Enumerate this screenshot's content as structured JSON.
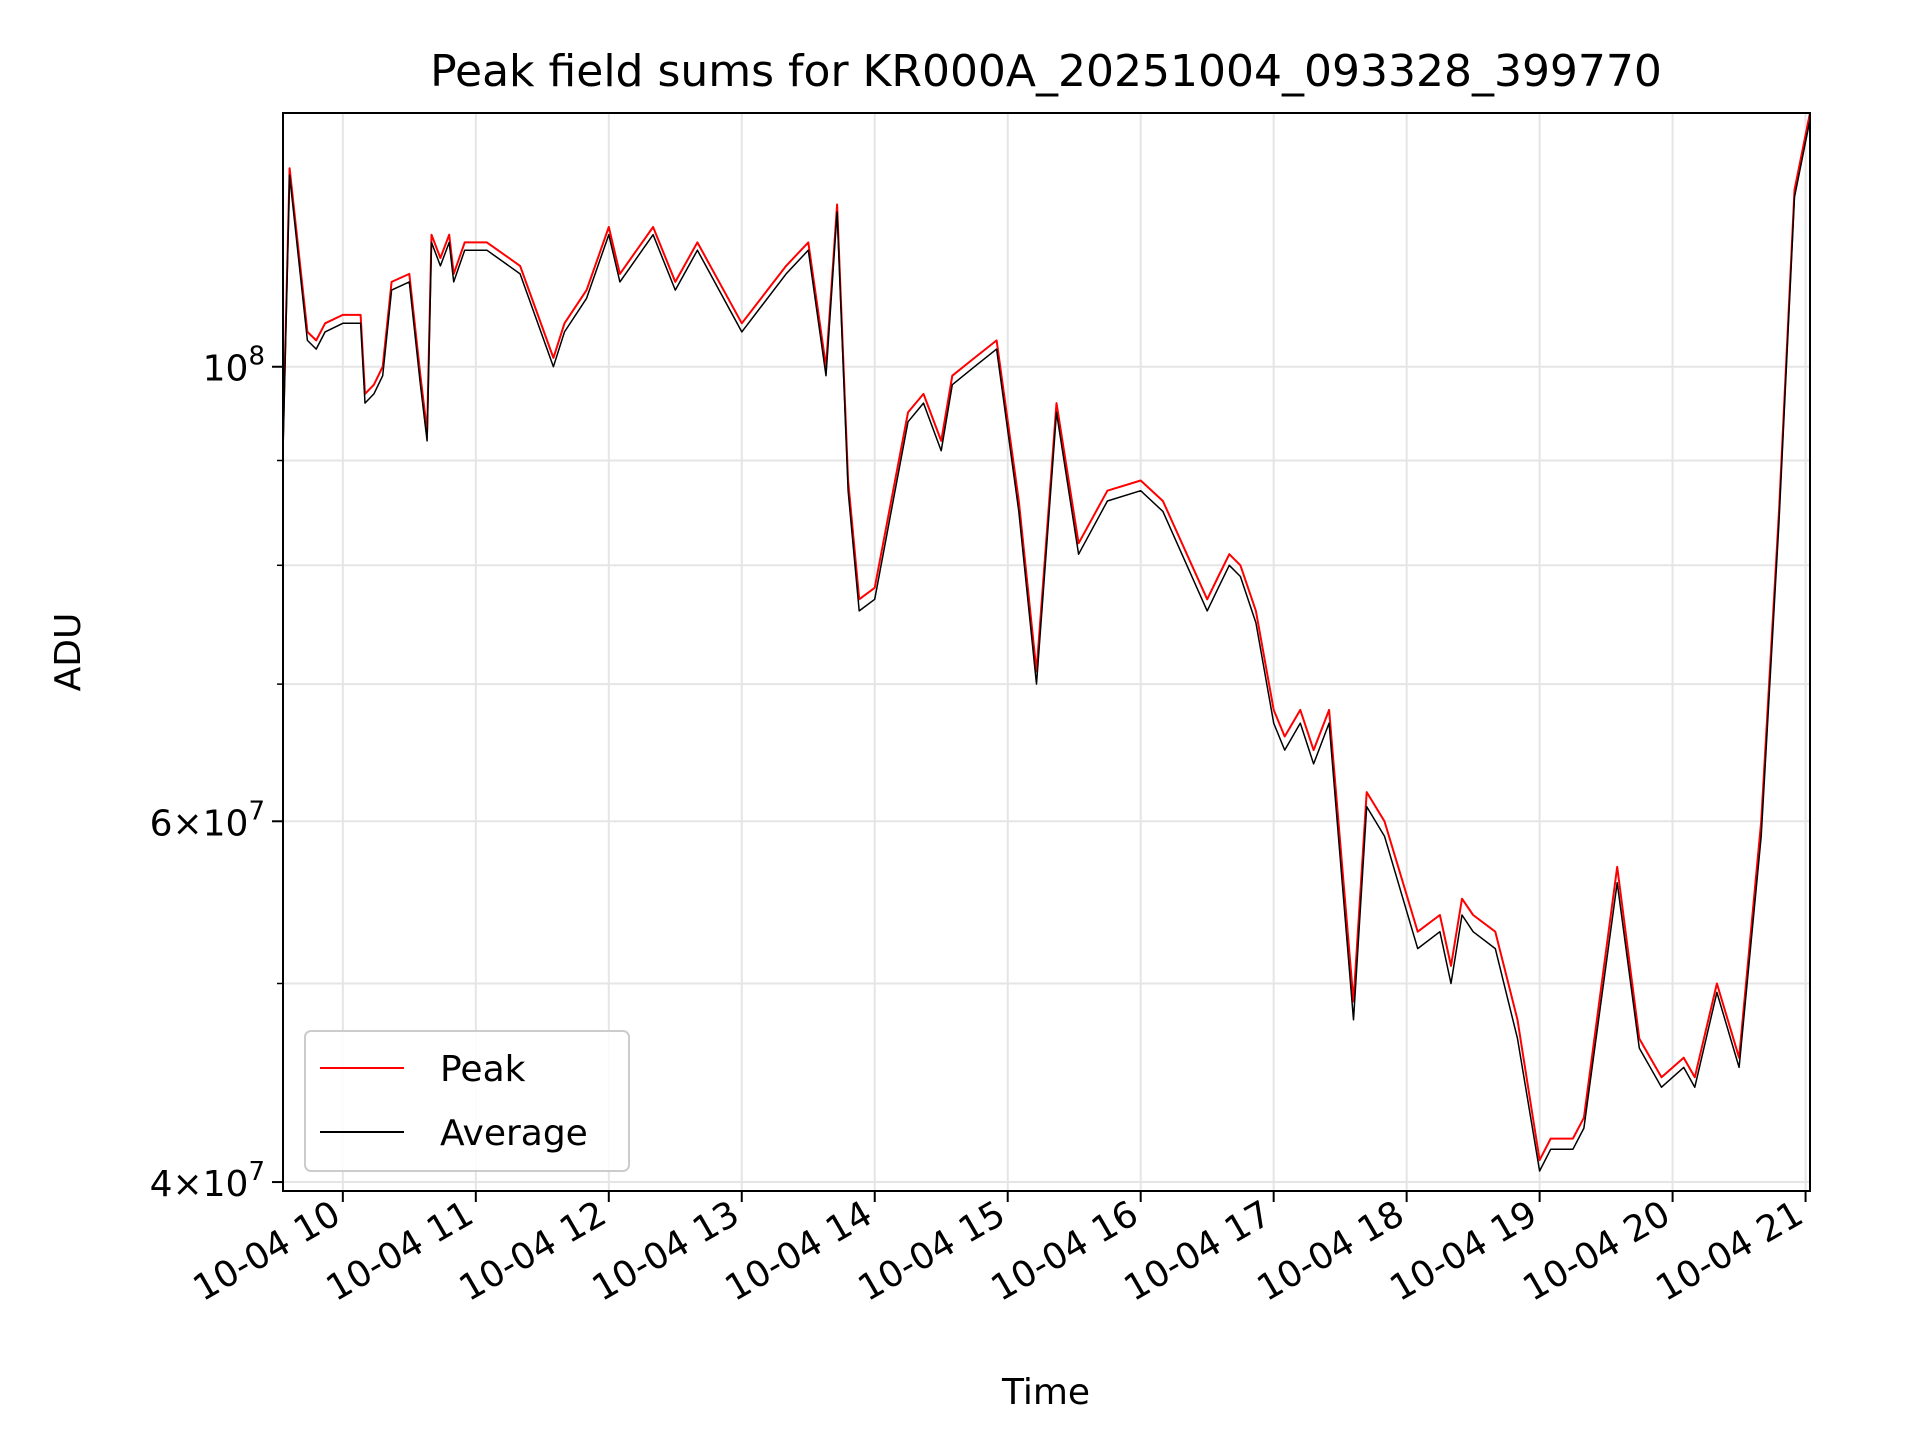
{
  "chart_data": {
    "type": "line",
    "title": "Peak field sums for KR000A_20251004_093328_399770",
    "xlabel": "Time",
    "ylabel": "ADU",
    "yscale": "log",
    "ylim": [
      39600000,
      133000000
    ],
    "xlim": [
      "2025-10-04 09:33",
      "2025-10-04 21:02"
    ],
    "xticks": [
      {
        "at": "2025-10-04 10:00",
        "label": "10-04 10"
      },
      {
        "at": "2025-10-04 11:00",
        "label": "10-04 11"
      },
      {
        "at": "2025-10-04 12:00",
        "label": "10-04 12"
      },
      {
        "at": "2025-10-04 13:00",
        "label": "10-04 13"
      },
      {
        "at": "2025-10-04 14:00",
        "label": "10-04 14"
      },
      {
        "at": "2025-10-04 15:00",
        "label": "10-04 15"
      },
      {
        "at": "2025-10-04 16:00",
        "label": "10-04 16"
      },
      {
        "at": "2025-10-04 17:00",
        "label": "10-04 17"
      },
      {
        "at": "2025-10-04 18:00",
        "label": "10-04 18"
      },
      {
        "at": "2025-10-04 19:00",
        "label": "10-04 19"
      },
      {
        "at": "2025-10-04 20:00",
        "label": "10-04 20"
      },
      {
        "at": "2025-10-04 21:00",
        "label": "10-04 21"
      }
    ],
    "yticks_major": [
      {
        "value": 40000000,
        "base": "4×10",
        "exp": "7"
      },
      {
        "value": 60000000,
        "base": "6×10",
        "exp": "7"
      },
      {
        "value": 100000000,
        "base": "10",
        "exp": "8"
      }
    ],
    "yticks_minor": [
      50000000,
      70000000,
      80000000,
      90000000
    ],
    "grid": true,
    "legend": "lower-left",
    "series": [
      {
        "name": "Peak",
        "color": "#ff0000",
        "x": [
          "2025-10-04 09:33",
          "2025-10-04 09:36",
          "2025-10-04 09:40",
          "2025-10-04 09:44",
          "2025-10-04 09:48",
          "2025-10-04 09:52",
          "2025-10-04 10:00",
          "2025-10-04 10:08",
          "2025-10-04 10:10",
          "2025-10-04 10:14",
          "2025-10-04 10:18",
          "2025-10-04 10:22",
          "2025-10-04 10:30",
          "2025-10-04 10:35",
          "2025-10-04 10:38",
          "2025-10-04 10:40",
          "2025-10-04 10:44",
          "2025-10-04 10:48",
          "2025-10-04 10:50",
          "2025-10-04 10:55",
          "2025-10-04 11:05",
          "2025-10-04 11:20",
          "2025-10-04 11:35",
          "2025-10-04 11:40",
          "2025-10-04 11:50",
          "2025-10-04 12:00",
          "2025-10-04 12:05",
          "2025-10-04 12:20",
          "2025-10-04 12:30",
          "2025-10-04 12:40",
          "2025-10-04 13:00",
          "2025-10-04 13:20",
          "2025-10-04 13:30",
          "2025-10-04 13:38",
          "2025-10-04 13:43",
          "2025-10-04 13:48",
          "2025-10-04 13:53",
          "2025-10-04 14:00",
          "2025-10-04 14:15",
          "2025-10-04 14:22",
          "2025-10-04 14:30",
          "2025-10-04 14:35",
          "2025-10-04 14:45",
          "2025-10-04 14:55",
          "2025-10-04 15:05",
          "2025-10-04 15:13",
          "2025-10-04 15:22",
          "2025-10-04 15:32",
          "2025-10-04 15:45",
          "2025-10-04 16:00",
          "2025-10-04 16:10",
          "2025-10-04 16:30",
          "2025-10-04 16:35",
          "2025-10-04 16:40",
          "2025-10-04 16:45",
          "2025-10-04 16:52",
          "2025-10-04 17:00",
          "2025-10-04 17:05",
          "2025-10-04 17:12",
          "2025-10-04 17:18",
          "2025-10-04 17:25",
          "2025-10-04 17:36",
          "2025-10-04 17:42",
          "2025-10-04 17:50",
          "2025-10-04 18:05",
          "2025-10-04 18:15",
          "2025-10-04 18:20",
          "2025-10-04 18:25",
          "2025-10-04 18:30",
          "2025-10-04 18:40",
          "2025-10-04 18:50",
          "2025-10-04 19:00",
          "2025-10-04 19:05",
          "2025-10-04 19:15",
          "2025-10-04 19:20",
          "2025-10-04 19:35",
          "2025-10-04 19:45",
          "2025-10-04 19:55",
          "2025-10-04 20:05",
          "2025-10-04 20:10",
          "2025-10-04 20:20",
          "2025-10-04 20:30",
          "2025-10-04 20:40",
          "2025-10-04 20:48",
          "2025-10-04 20:55",
          "2025-10-04 21:02"
        ],
        "y": [
          92000000,
          125000000,
          114000000,
          104000000,
          103000000,
          105000000,
          106000000,
          106000000,
          97000000,
          98000000,
          100000000,
          110000000,
          111000000,
          99000000,
          93000000,
          116000000,
          113000000,
          116000000,
          111000000,
          115000000,
          115000000,
          112000000,
          101000000,
          105000000,
          109000000,
          117000000,
          111000000,
          117000000,
          110000000,
          115000000,
          105000000,
          112000000,
          115000000,
          100000000,
          120000000,
          88000000,
          77000000,
          78000000,
          95000000,
          97000000,
          92000000,
          99000000,
          101000000,
          103000000,
          86000000,
          71000000,
          96000000,
          82000000,
          87000000,
          88000000,
          86000000,
          77000000,
          79000000,
          81000000,
          80000000,
          76000000,
          68000000,
          66000000,
          68000000,
          65000000,
          68000000,
          49000000,
          62000000,
          60000000,
          53000000,
          54000000,
          51000000,
          55000000,
          54000000,
          53000000,
          48000000,
          41000000,
          42000000,
          42000000,
          43000000,
          57000000,
          47000000,
          45000000,
          46000000,
          45000000,
          50000000,
          46000000,
          60000000,
          85000000,
          122000000,
          133000000
        ]
      },
      {
        "name": "Average",
        "color": "#000000",
        "x": [
          "2025-10-04 09:33",
          "2025-10-04 09:36",
          "2025-10-04 09:40",
          "2025-10-04 09:44",
          "2025-10-04 09:48",
          "2025-10-04 09:52",
          "2025-10-04 10:00",
          "2025-10-04 10:08",
          "2025-10-04 10:10",
          "2025-10-04 10:14",
          "2025-10-04 10:18",
          "2025-10-04 10:22",
          "2025-10-04 10:30",
          "2025-10-04 10:35",
          "2025-10-04 10:38",
          "2025-10-04 10:40",
          "2025-10-04 10:44",
          "2025-10-04 10:48",
          "2025-10-04 10:50",
          "2025-10-04 10:55",
          "2025-10-04 11:05",
          "2025-10-04 11:20",
          "2025-10-04 11:35",
          "2025-10-04 11:40",
          "2025-10-04 11:50",
          "2025-10-04 12:00",
          "2025-10-04 12:05",
          "2025-10-04 12:20",
          "2025-10-04 12:30",
          "2025-10-04 12:40",
          "2025-10-04 13:00",
          "2025-10-04 13:20",
          "2025-10-04 13:30",
          "2025-10-04 13:38",
          "2025-10-04 13:43",
          "2025-10-04 13:48",
          "2025-10-04 13:53",
          "2025-10-04 14:00",
          "2025-10-04 14:15",
          "2025-10-04 14:22",
          "2025-10-04 14:30",
          "2025-10-04 14:35",
          "2025-10-04 14:45",
          "2025-10-04 14:55",
          "2025-10-04 15:05",
          "2025-10-04 15:13",
          "2025-10-04 15:22",
          "2025-10-04 15:32",
          "2025-10-04 15:45",
          "2025-10-04 16:00",
          "2025-10-04 16:10",
          "2025-10-04 16:30",
          "2025-10-04 16:35",
          "2025-10-04 16:40",
          "2025-10-04 16:45",
          "2025-10-04 16:52",
          "2025-10-04 17:00",
          "2025-10-04 17:05",
          "2025-10-04 17:12",
          "2025-10-04 17:18",
          "2025-10-04 17:25",
          "2025-10-04 17:36",
          "2025-10-04 17:42",
          "2025-10-04 17:50",
          "2025-10-04 18:05",
          "2025-10-04 18:15",
          "2025-10-04 18:20",
          "2025-10-04 18:25",
          "2025-10-04 18:30",
          "2025-10-04 18:40",
          "2025-10-04 18:50",
          "2025-10-04 19:00",
          "2025-10-04 19:05",
          "2025-10-04 19:15",
          "2025-10-04 19:20",
          "2025-10-04 19:35",
          "2025-10-04 19:45",
          "2025-10-04 19:55",
          "2025-10-04 20:05",
          "2025-10-04 20:10",
          "2025-10-04 20:20",
          "2025-10-04 20:30",
          "2025-10-04 20:40",
          "2025-10-04 20:48",
          "2025-10-04 20:55",
          "2025-10-04 21:02"
        ],
        "y": [
          91000000,
          124000000,
          113000000,
          103000000,
          102000000,
          104000000,
          105000000,
          105000000,
          96000000,
          97000000,
          99000000,
          109000000,
          110000000,
          98000000,
          92000000,
          115000000,
          112000000,
          115000000,
          110000000,
          114000000,
          114000000,
          111000000,
          100000000,
          104000000,
          108000000,
          116000000,
          110000000,
          116000000,
          109000000,
          114000000,
          104000000,
          111000000,
          114000000,
          99000000,
          119000000,
          87000000,
          76000000,
          77000000,
          94000000,
          96000000,
          91000000,
          98000000,
          100000000,
          102000000,
          85000000,
          70000000,
          95000000,
          81000000,
          86000000,
          87000000,
          85000000,
          76000000,
          78000000,
          80000000,
          79000000,
          75000000,
          67000000,
          65000000,
          67000000,
          64000000,
          67000000,
          48000000,
          61000000,
          59000000,
          52000000,
          53000000,
          50000000,
          54000000,
          53000000,
          52000000,
          47000000,
          40500000,
          41500000,
          41500000,
          42500000,
          56000000,
          46500000,
          44500000,
          45500000,
          44500000,
          49500000,
          45500000,
          59000000,
          84000000,
          121000000,
          132000000
        ]
      }
    ]
  }
}
